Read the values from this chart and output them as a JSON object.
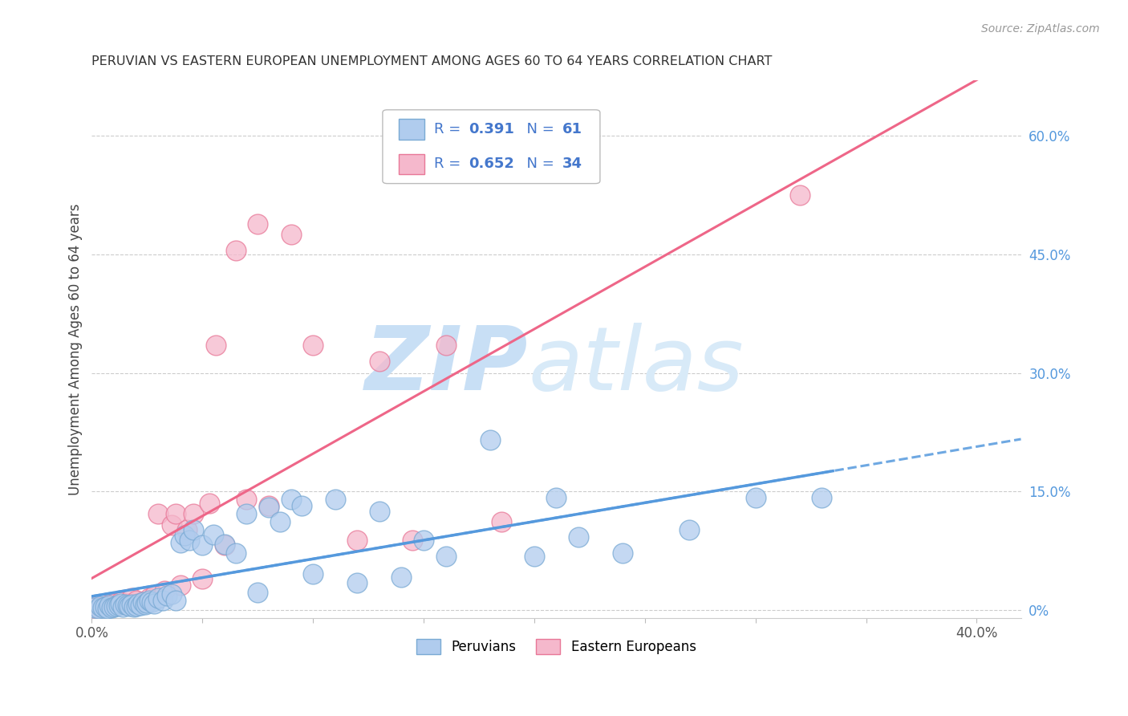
{
  "title": "PERUVIAN VS EASTERN EUROPEAN UNEMPLOYMENT AMONG AGES 60 TO 64 YEARS CORRELATION CHART",
  "source": "Source: ZipAtlas.com",
  "ylabel": "Unemployment Among Ages 60 to 64 years",
  "xlim": [
    0.0,
    0.42
  ],
  "ylim": [
    -0.01,
    0.67
  ],
  "xticks": [
    0.0,
    0.05,
    0.1,
    0.15,
    0.2,
    0.25,
    0.3,
    0.35,
    0.4
  ],
  "yticks_right": [
    0.0,
    0.15,
    0.3,
    0.45,
    0.6
  ],
  "ytick_right_labels": [
    "0%",
    "15.0%",
    "30.0%",
    "45.0%",
    "60.0%"
  ],
  "grid_color": "#cccccc",
  "background_color": "#ffffff",
  "peruvian_color": "#b0ccee",
  "eastern_color": "#f5b8cc",
  "peruvian_edge_color": "#7aaad4",
  "eastern_edge_color": "#e87898",
  "peruvian_line_color": "#5599dd",
  "eastern_line_color": "#ee6688",
  "legend_text_color": "#4477cc",
  "right_axis_color": "#5599dd",
  "peruvian_R": 0.391,
  "peruvian_N": 61,
  "eastern_R": 0.652,
  "eastern_N": 34,
  "watermark_zip_color": "#c8dff5",
  "watermark_atlas_color": "#d8eaf8",
  "peruvian_scatter_x": [
    0.001,
    0.003,
    0.004,
    0.005,
    0.006,
    0.007,
    0.008,
    0.009,
    0.01,
    0.011,
    0.012,
    0.013,
    0.014,
    0.015,
    0.016,
    0.017,
    0.018,
    0.019,
    0.02,
    0.021,
    0.022,
    0.023,
    0.024,
    0.025,
    0.026,
    0.027,
    0.028,
    0.03,
    0.032,
    0.034,
    0.036,
    0.038,
    0.04,
    0.042,
    0.044,
    0.046,
    0.05,
    0.055,
    0.06,
    0.065,
    0.07,
    0.075,
    0.08,
    0.085,
    0.09,
    0.095,
    0.1,
    0.11,
    0.12,
    0.13,
    0.14,
    0.15,
    0.16,
    0.18,
    0.2,
    0.21,
    0.22,
    0.24,
    0.27,
    0.3,
    0.33
  ],
  "peruvian_scatter_y": [
    0.003,
    0.002,
    0.005,
    0.003,
    0.004,
    0.002,
    0.006,
    0.003,
    0.004,
    0.005,
    0.006,
    0.008,
    0.004,
    0.007,
    0.006,
    0.005,
    0.007,
    0.004,
    0.005,
    0.008,
    0.006,
    0.01,
    0.007,
    0.009,
    0.012,
    0.01,
    0.008,
    0.015,
    0.012,
    0.018,
    0.02,
    0.012,
    0.085,
    0.095,
    0.088,
    0.102,
    0.082,
    0.096,
    0.083,
    0.072,
    0.122,
    0.022,
    0.13,
    0.112,
    0.14,
    0.132,
    0.046,
    0.14,
    0.035,
    0.125,
    0.042,
    0.088,
    0.068,
    0.215,
    0.068,
    0.142,
    0.092,
    0.072,
    0.102,
    0.142,
    0.142
  ],
  "eastern_scatter_x": [
    0.001,
    0.004,
    0.007,
    0.01,
    0.013,
    0.016,
    0.018,
    0.02,
    0.023,
    0.026,
    0.028,
    0.03,
    0.033,
    0.036,
    0.038,
    0.04,
    0.043,
    0.046,
    0.05,
    0.053,
    0.056,
    0.06,
    0.065,
    0.07,
    0.075,
    0.08,
    0.09,
    0.1,
    0.12,
    0.13,
    0.145,
    0.16,
    0.185,
    0.32
  ],
  "eastern_scatter_y": [
    0.003,
    0.004,
    0.006,
    0.008,
    0.01,
    0.008,
    0.015,
    0.012,
    0.01,
    0.015,
    0.018,
    0.122,
    0.025,
    0.108,
    0.122,
    0.032,
    0.102,
    0.122,
    0.04,
    0.135,
    0.335,
    0.082,
    0.455,
    0.14,
    0.488,
    0.132,
    0.475,
    0.335,
    0.088,
    0.315,
    0.088,
    0.335,
    0.112,
    0.525
  ]
}
